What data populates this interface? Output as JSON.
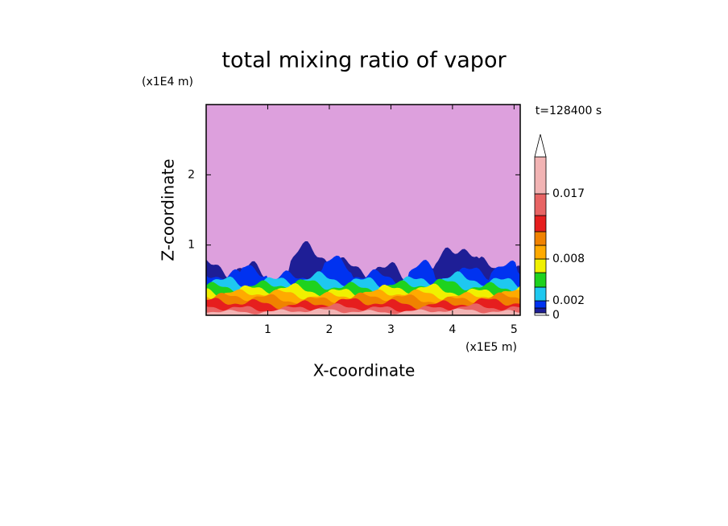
{
  "chart_data": {
    "type": "contour",
    "title": "total mixing ratio of vapor",
    "x_label": "X-coordinate",
    "y_label": "Z-coordinate",
    "x_unit": "(x1E5 m)",
    "y_unit": "(x1E4 m)",
    "annotation": "t=128400 s",
    "xlim": [
      0,
      5.1
    ],
    "ylim": [
      0,
      3
    ],
    "xticks": [
      1,
      2,
      3,
      4,
      5
    ],
    "yticks": [
      1,
      2
    ],
    "background_color": "#dda0dd",
    "colorbar": {
      "colors": [
        "#ffffff",
        "#1e1e96",
        "#0032f0",
        "#1ec8f0",
        "#1ed21e",
        "#f0f000",
        "#ffaa00",
        "#f08200",
        "#e61e1e",
        "#e86464",
        "#f2b4b4"
      ],
      "ticks": [
        0,
        0.002,
        0.008,
        0.017
      ]
    }
  }
}
